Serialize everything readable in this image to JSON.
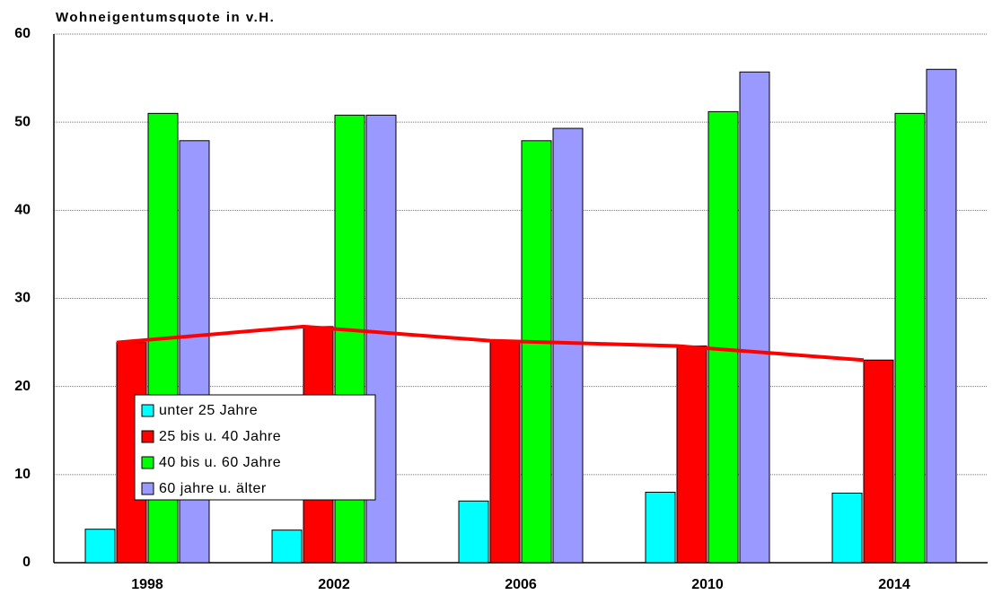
{
  "chart_data": {
    "type": "bar",
    "title": "Wohneigentumsquote in v.H.",
    "categories": [
      "1998",
      "2002",
      "2006",
      "2010",
      "2014"
    ],
    "series": [
      {
        "name": "unter 25 Jahre",
        "color": "#00ffff",
        "values": [
          3.8,
          3.7,
          7.0,
          8.0,
          7.9
        ]
      },
      {
        "name": "25 bis u. 40 Jahre",
        "color": "#ff0000",
        "values": [
          25.0,
          26.8,
          25.2,
          24.6,
          23.0
        ]
      },
      {
        "name": "40 bis u. 60 Jahre",
        "color": "#00ff00",
        "values": [
          51.0,
          50.8,
          47.9,
          51.2,
          51.0
        ]
      },
      {
        "name": "60 jahre u. älter",
        "color": "#9999ff",
        "values": [
          47.9,
          50.8,
          49.3,
          55.7,
          56.0
        ]
      }
    ],
    "ylim": [
      0,
      60
    ],
    "yticks": [
      0,
      10,
      20,
      30,
      40,
      50,
      60
    ],
    "grid": true
  }
}
